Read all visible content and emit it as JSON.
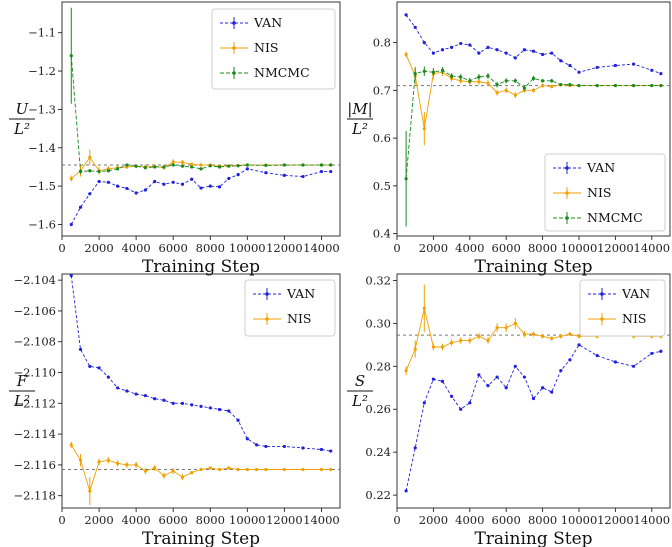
{
  "chart_data": [
    {
      "type": "line",
      "xlabel": "Training Step",
      "ylabel_num": "U",
      "ylabel_den": "L²",
      "xlim": [
        0,
        15000
      ],
      "ylim": [
        -1.63,
        -1.02
      ],
      "xticks": [
        0,
        2000,
        4000,
        6000,
        8000,
        10000,
        12000,
        14000
      ],
      "yticks": [
        -1.6,
        -1.5,
        -1.4,
        -1.3,
        -1.2,
        -1.1
      ],
      "reference_line": -1.445,
      "legend_position": "top-right",
      "series": [
        {
          "name": "VAN",
          "color": "#2020dd",
          "x": [
            500,
            1000,
            1500,
            2000,
            2500,
            3000,
            3500,
            4000,
            4500,
            5000,
            5500,
            6000,
            6500,
            7000,
            7500,
            8000,
            8500,
            9000,
            9500,
            10000,
            11000,
            12000,
            13000,
            14000,
            14500
          ],
          "y": [
            -1.6,
            -1.555,
            -1.52,
            -1.488,
            -1.49,
            -1.5,
            -1.506,
            -1.518,
            -1.51,
            -1.488,
            -1.495,
            -1.49,
            -1.495,
            -1.482,
            -1.505,
            -1.5,
            -1.502,
            -1.48,
            -1.47,
            -1.455,
            -1.465,
            -1.472,
            -1.475,
            -1.462,
            -1.462
          ]
        },
        {
          "name": "NIS",
          "color": "#f0a000",
          "x": [
            500,
            1000,
            1500,
            2000,
            2500,
            3000,
            3500,
            4000,
            4500,
            5000,
            5500,
            6000,
            6500,
            7000,
            7500,
            8000,
            8500,
            9000,
            9500,
            10000,
            11000,
            12000,
            13000,
            14000,
            14500
          ],
          "y": [
            -1.48,
            -1.46,
            -1.425,
            -1.46,
            -1.455,
            -1.452,
            -1.45,
            -1.448,
            -1.45,
            -1.448,
            -1.452,
            -1.437,
            -1.438,
            -1.443,
            -1.445,
            -1.445,
            -1.448,
            -1.447,
            -1.446,
            -1.445,
            -1.445,
            -1.445,
            -1.445,
            -1.445,
            -1.445
          ],
          "err": [
            0.008,
            0.015,
            0.02,
            0.01,
            0.008,
            0.006,
            0.005,
            0.005,
            0.006,
            0.005,
            0.005,
            0.007,
            0.006,
            0.004,
            0.003,
            0.003,
            0.002,
            0.002,
            0.002,
            0.002,
            0.002,
            0.002,
            0.002,
            0.002,
            0.002
          ]
        },
        {
          "name": "NMCMC",
          "color": "#1a8a1a",
          "x": [
            500,
            1000,
            1500,
            2000,
            2500,
            3000,
            3500,
            4000,
            4500,
            5000,
            5500,
            6000,
            6500,
            7000,
            7500,
            8000,
            8500,
            9000,
            9500,
            10000,
            11000,
            12000,
            13000,
            14000,
            14500
          ],
          "y": [
            -1.16,
            -1.462,
            -1.46,
            -1.462,
            -1.46,
            -1.455,
            -1.445,
            -1.448,
            -1.452,
            -1.45,
            -1.45,
            -1.445,
            -1.448,
            -1.45,
            -1.455,
            -1.447,
            -1.45,
            -1.448,
            -1.447,
            -1.445,
            -1.446,
            -1.445,
            -1.445,
            -1.445,
            -1.445
          ],
          "err": [
            0.125,
            0.006,
            0.004,
            0.004,
            0.004,
            0.004,
            0.004,
            0.004,
            0.003,
            0.003,
            0.003,
            0.003,
            0.003,
            0.003,
            0.003,
            0.003,
            0.002,
            0.002,
            0.002,
            0.002,
            0.002,
            0.002,
            0.002,
            0.002,
            0.002
          ]
        }
      ]
    },
    {
      "type": "line",
      "xlabel": "Training Step",
      "ylabel_num": "|M|",
      "ylabel_den": "L²",
      "xlim": [
        0,
        15000
      ],
      "ylim": [
        0.395,
        0.885
      ],
      "xticks": [
        0,
        2000,
        4000,
        6000,
        8000,
        10000,
        12000,
        14000
      ],
      "yticks": [
        0.4,
        0.5,
        0.6,
        0.7,
        0.8
      ],
      "reference_line": 0.71,
      "legend_position": "bottom-right",
      "series": [
        {
          "name": "VAN",
          "color": "#2020dd",
          "x": [
            500,
            1000,
            1500,
            2000,
            2500,
            3000,
            3500,
            4000,
            4500,
            5000,
            5500,
            6000,
            6500,
            7000,
            7500,
            8000,
            8500,
            9000,
            9500,
            10000,
            11000,
            12000,
            13000,
            14000,
            14500
          ],
          "y": [
            0.858,
            0.832,
            0.8,
            0.778,
            0.785,
            0.79,
            0.798,
            0.795,
            0.778,
            0.79,
            0.785,
            0.778,
            0.768,
            0.785,
            0.782,
            0.775,
            0.778,
            0.762,
            0.752,
            0.738,
            0.748,
            0.752,
            0.755,
            0.742,
            0.735
          ]
        },
        {
          "name": "NIS",
          "color": "#f0a000",
          "x": [
            500,
            1000,
            1500,
            2000,
            2500,
            3000,
            3500,
            4000,
            4500,
            5000,
            5500,
            6000,
            6500,
            7000,
            7500,
            8000,
            8500,
            9000,
            9500,
            10000,
            11000,
            12000,
            13000,
            14000,
            14500
          ],
          "y": [
            0.775,
            0.73,
            0.62,
            0.735,
            0.738,
            0.725,
            0.72,
            0.718,
            0.718,
            0.715,
            0.695,
            0.7,
            0.69,
            0.7,
            0.7,
            0.71,
            0.708,
            0.712,
            0.71,
            0.71,
            0.71,
            0.71,
            0.71,
            0.71,
            0.71
          ],
          "err": [
            0.006,
            0.02,
            0.035,
            0.012,
            0.008,
            0.007,
            0.006,
            0.006,
            0.006,
            0.006,
            0.006,
            0.006,
            0.006,
            0.005,
            0.005,
            0.004,
            0.004,
            0.003,
            0.003,
            0.003,
            0.003,
            0.003,
            0.003,
            0.003,
            0.003
          ]
        },
        {
          "name": "NMCMC",
          "color": "#1a8a1a",
          "x": [
            500,
            1000,
            1500,
            2000,
            2500,
            3000,
            3500,
            4000,
            4500,
            5000,
            5500,
            6000,
            6500,
            7000,
            7500,
            8000,
            8500,
            9000,
            9500,
            10000,
            11000,
            12000,
            13000,
            14000,
            14500
          ],
          "y": [
            0.515,
            0.735,
            0.74,
            0.738,
            0.742,
            0.73,
            0.728,
            0.72,
            0.728,
            0.73,
            0.712,
            0.72,
            0.72,
            0.705,
            0.725,
            0.72,
            0.72,
            0.712,
            0.712,
            0.71,
            0.71,
            0.71,
            0.71,
            0.71,
            0.71
          ],
          "err": [
            0.1,
            0.012,
            0.01,
            0.008,
            0.007,
            0.006,
            0.006,
            0.006,
            0.006,
            0.006,
            0.006,
            0.005,
            0.005,
            0.005,
            0.005,
            0.004,
            0.004,
            0.003,
            0.003,
            0.003,
            0.003,
            0.003,
            0.003,
            0.003,
            0.003
          ]
        }
      ]
    },
    {
      "type": "line",
      "xlabel": "Training Step",
      "ylabel_num": "F",
      "ylabel_den": "L²",
      "xlim": [
        0,
        15000
      ],
      "ylim": [
        -2.1188,
        -2.1036
      ],
      "xticks": [
        0,
        2000,
        4000,
        6000,
        8000,
        10000,
        12000,
        14000
      ],
      "yticks": [
        -2.118,
        -2.116,
        -2.114,
        -2.112,
        -2.11,
        -2.108,
        -2.106,
        -2.104
      ],
      "ytick_labels": [
        "−2.118",
        "−2.116",
        "−2.114",
        "−2.112",
        "−2.110",
        "−2.108",
        "−2.106",
        "−2.104"
      ],
      "reference_line": -2.1163,
      "legend_position": "top-right",
      "series": [
        {
          "name": "VAN",
          "color": "#2020dd",
          "x": [
            500,
            1000,
            1500,
            2000,
            2500,
            3000,
            3500,
            4000,
            4500,
            5000,
            5500,
            6000,
            6500,
            7000,
            7500,
            8000,
            8500,
            9000,
            9500,
            10000,
            10500,
            11000,
            12000,
            13000,
            14000,
            14500
          ],
          "y": [
            -2.1037,
            -2.1085,
            -2.1096,
            -2.1097,
            -2.1103,
            -2.111,
            -2.1112,
            -2.1114,
            -2.1115,
            -2.1117,
            -2.1118,
            -2.112,
            -2.112,
            -2.1121,
            -2.1122,
            -2.1123,
            -2.1124,
            -2.1125,
            -2.1131,
            -2.1143,
            -2.1147,
            -2.1148,
            -2.1148,
            -2.1149,
            -2.115,
            -2.1151
          ]
        },
        {
          "name": "NIS",
          "color": "#f0a000",
          "x": [
            500,
            1000,
            1500,
            2000,
            2500,
            3000,
            3500,
            4000,
            4500,
            5000,
            5500,
            6000,
            6500,
            7000,
            7500,
            8000,
            8500,
            9000,
            9500,
            10000,
            10500,
            11000,
            12000,
            13000,
            14000,
            14500
          ],
          "y": [
            -2.1147,
            -2.1157,
            -2.1177,
            -2.1158,
            -2.1157,
            -2.1159,
            -2.116,
            -2.116,
            -2.1164,
            -2.1162,
            -2.1167,
            -2.1164,
            -2.1168,
            -2.1165,
            -2.1163,
            -2.1162,
            -2.1163,
            -2.1162,
            -2.1163,
            -2.1163,
            -2.1163,
            -2.1163,
            -2.1163,
            -2.1163,
            -2.1163,
            -2.1163
          ],
          "err": [
            0.0002,
            0.0004,
            0.0009,
            0.0002,
            0.0002,
            0.0002,
            0.0002,
            0.0002,
            0.0002,
            0.0002,
            0.0002,
            0.0002,
            0.0002,
            0.0001,
            0.0001,
            0.0001,
            0.0001,
            0.0001,
            0.0001,
            0.0001,
            0.0001,
            0.0001,
            0.0001,
            0.0001,
            0.0001,
            0.0001
          ]
        }
      ]
    },
    {
      "type": "line",
      "xlabel": "Training Step",
      "ylabel_num": "S",
      "ylabel_den": "L²",
      "xlim": [
        0,
        15000
      ],
      "ylim": [
        0.214,
        0.323
      ],
      "xticks": [
        0,
        2000,
        4000,
        6000,
        8000,
        10000,
        12000,
        14000
      ],
      "yticks": [
        0.22,
        0.24,
        0.26,
        0.28,
        0.3,
        0.32
      ],
      "ytick_labels": [
        "0.22",
        "0.24",
        "0.26",
        "0.28",
        "0.30",
        "0.32"
      ],
      "reference_line": 0.2945,
      "legend_position": "top-right",
      "series": [
        {
          "name": "VAN",
          "color": "#2020dd",
          "x": [
            500,
            1000,
            1500,
            2000,
            2500,
            3000,
            3500,
            4000,
            4500,
            5000,
            5500,
            6000,
            6500,
            7000,
            7500,
            8000,
            8500,
            9000,
            9500,
            10000,
            11000,
            12000,
            13000,
            14000,
            14500
          ],
          "y": [
            0.222,
            0.242,
            0.263,
            0.274,
            0.273,
            0.266,
            0.26,
            0.263,
            0.276,
            0.271,
            0.275,
            0.27,
            0.28,
            0.275,
            0.265,
            0.27,
            0.268,
            0.278,
            0.283,
            0.29,
            0.285,
            0.282,
            0.28,
            0.286,
            0.287
          ]
        },
        {
          "name": "NIS",
          "color": "#f0a000",
          "x": [
            500,
            1000,
            1500,
            2000,
            2500,
            3000,
            3500,
            4000,
            4500,
            5000,
            5500,
            6000,
            6500,
            7000,
            7500,
            8000,
            8500,
            9000,
            9500,
            10000,
            11000,
            12000,
            13000,
            14000,
            14500
          ],
          "y": [
            0.278,
            0.288,
            0.307,
            0.289,
            0.289,
            0.291,
            0.292,
            0.292,
            0.294,
            0.292,
            0.298,
            0.298,
            0.3,
            0.295,
            0.295,
            0.294,
            0.293,
            0.294,
            0.295,
            0.294,
            0.294,
            0.295,
            0.294,
            0.294,
            0.294
          ],
          "err": [
            0.002,
            0.004,
            0.011,
            0.0015,
            0.0015,
            0.0015,
            0.0015,
            0.0015,
            0.0015,
            0.0015,
            0.002,
            0.002,
            0.0025,
            0.0015,
            0.0012,
            0.001,
            0.001,
            0.001,
            0.001,
            0.001,
            0.001,
            0.001,
            0.001,
            0.001,
            0.001
          ]
        }
      ]
    }
  ]
}
